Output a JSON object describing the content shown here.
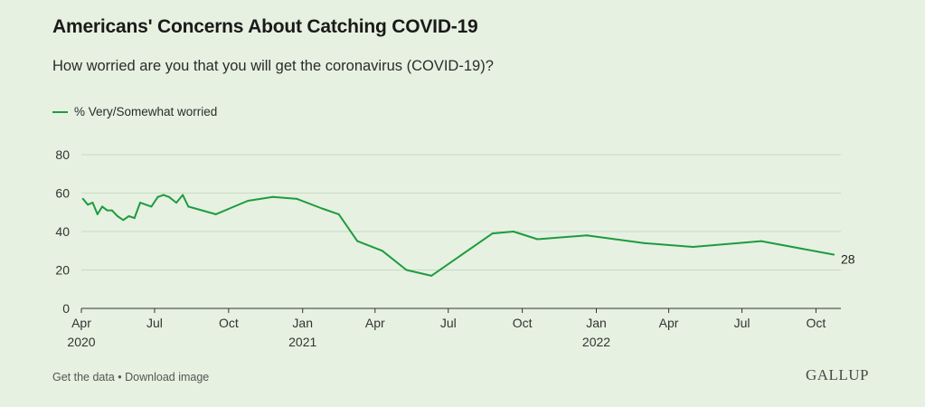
{
  "header": {
    "title": "Americans' Concerns About Catching COVID-19",
    "subtitle": "How worried are you that you will get the coronavirus (COVID-19)?"
  },
  "footer": {
    "get_data": "Get the data",
    "separator": " • ",
    "download": "Download image",
    "brand": "GALLUP"
  },
  "colors": {
    "series": "#1e9b3f",
    "grid": "#c9d9c3",
    "axis": "#333333"
  },
  "chart_data": {
    "type": "line",
    "title": "Americans' Concerns About Catching COVID-19",
    "subtitle": "How worried are you that you will get the coronavirus (COVID-19)?",
    "xlabel": "",
    "ylabel": "",
    "ylim": [
      0,
      80
    ],
    "yticks": [
      0,
      20,
      40,
      60,
      80
    ],
    "grid": true,
    "legend_position": "top-left",
    "x_range": [
      "2020-04-01",
      "2022-10-23"
    ],
    "x_ticks": [
      {
        "date": "2020-04-01",
        "label": "Apr",
        "year": "2020"
      },
      {
        "date": "2020-07-01",
        "label": "Jul"
      },
      {
        "date": "2020-10-01",
        "label": "Oct"
      },
      {
        "date": "2021-01-01",
        "label": "Jan",
        "year": "2021"
      },
      {
        "date": "2021-04-01",
        "label": "Apr"
      },
      {
        "date": "2021-07-01",
        "label": "Jul"
      },
      {
        "date": "2021-10-01",
        "label": "Oct"
      },
      {
        "date": "2022-01-01",
        "label": "Jan",
        "year": "2022"
      },
      {
        "date": "2022-04-01",
        "label": "Apr"
      },
      {
        "date": "2022-07-01",
        "label": "Jul"
      },
      {
        "date": "2022-10-01",
        "label": "Oct"
      }
    ],
    "series": [
      {
        "name": "% Very/Somewhat worried",
        "end_label": "28",
        "points": [
          {
            "x": "2020-04-03",
            "y": 57
          },
          {
            "x": "2020-04-09",
            "y": 54
          },
          {
            "x": "2020-04-15",
            "y": 55
          },
          {
            "x": "2020-04-21",
            "y": 49
          },
          {
            "x": "2020-04-27",
            "y": 53
          },
          {
            "x": "2020-05-03",
            "y": 51
          },
          {
            "x": "2020-05-09",
            "y": 51
          },
          {
            "x": "2020-05-16",
            "y": 48
          },
          {
            "x": "2020-05-23",
            "y": 46
          },
          {
            "x": "2020-05-30",
            "y": 48
          },
          {
            "x": "2020-06-06",
            "y": 47
          },
          {
            "x": "2020-06-13",
            "y": 55
          },
          {
            "x": "2020-06-27",
            "y": 53
          },
          {
            "x": "2020-07-05",
            "y": 58
          },
          {
            "x": "2020-07-12",
            "y": 59
          },
          {
            "x": "2020-07-19",
            "y": 58
          },
          {
            "x": "2020-07-28",
            "y": 55
          },
          {
            "x": "2020-08-05",
            "y": 59
          },
          {
            "x": "2020-08-12",
            "y": 53
          },
          {
            "x": "2020-09-15",
            "y": 49
          },
          {
            "x": "2020-10-25",
            "y": 56
          },
          {
            "x": "2020-11-25",
            "y": 58
          },
          {
            "x": "2020-12-25",
            "y": 57
          },
          {
            "x": "2021-01-25",
            "y": 52
          },
          {
            "x": "2021-02-15",
            "y": 49
          },
          {
            "x": "2021-03-10",
            "y": 35
          },
          {
            "x": "2021-04-10",
            "y": 30
          },
          {
            "x": "2021-05-10",
            "y": 20
          },
          {
            "x": "2021-06-10",
            "y": 17
          },
          {
            "x": "2021-08-25",
            "y": 39
          },
          {
            "x": "2021-09-20",
            "y": 40
          },
          {
            "x": "2021-10-20",
            "y": 36
          },
          {
            "x": "2021-12-20",
            "y": 38
          },
          {
            "x": "2022-03-01",
            "y": 34
          },
          {
            "x": "2022-05-01",
            "y": 32
          },
          {
            "x": "2022-07-25",
            "y": 35
          },
          {
            "x": "2022-10-23",
            "y": 28
          }
        ]
      }
    ]
  }
}
